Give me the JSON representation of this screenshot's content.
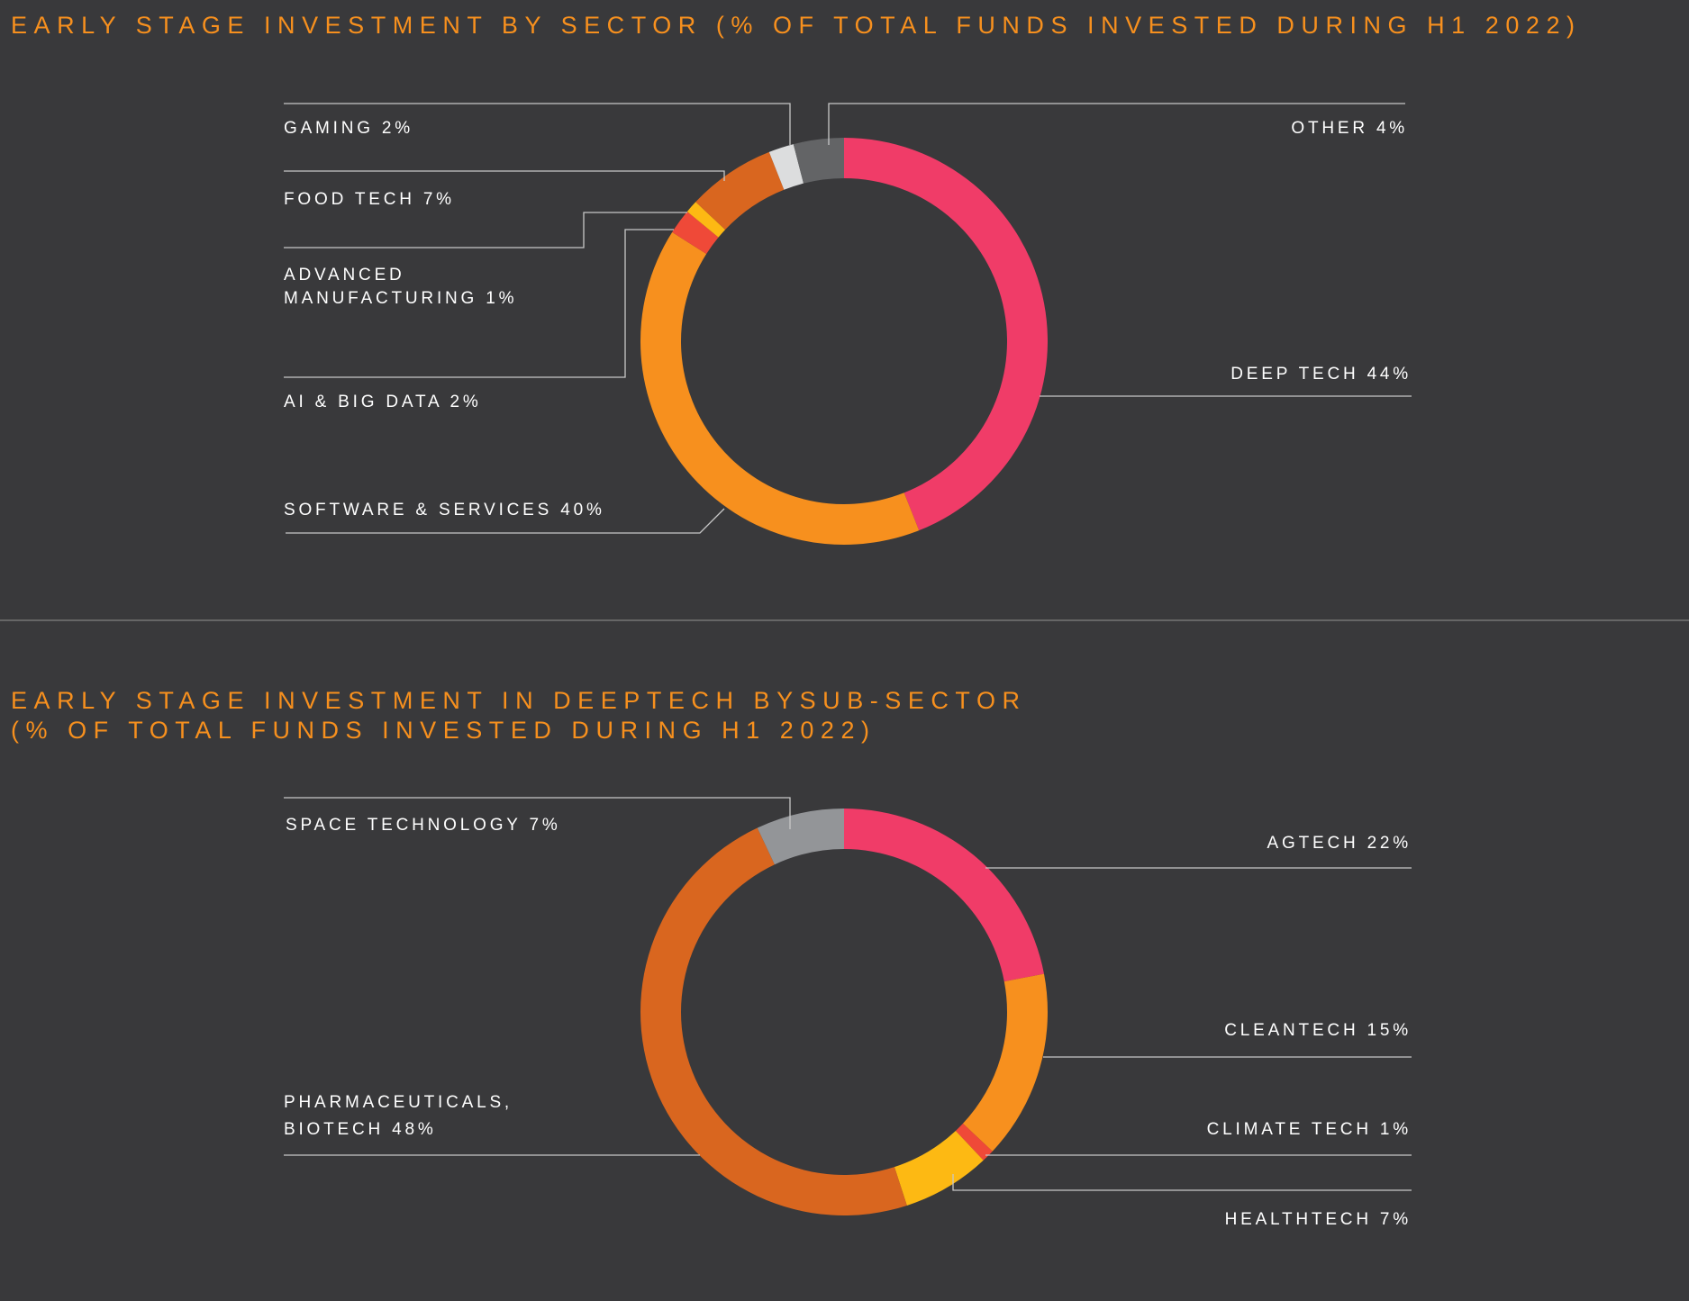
{
  "chart_data": [
    {
      "type": "pie",
      "title": "EARLY STAGE INVESTMENT BY SECTOR (% OF TOTAL FUNDS INVESTED DURING H1 2022)",
      "donut": true,
      "labels": [
        "DEEP TECH 44%",
        "SOFTWARE & SERVICES 40%",
        "AI & BIG DATA 2%",
        "ADVANCED MANUFACTURING 1%",
        "FOOD TECH 7%",
        "GAMING 2%",
        "OTHER 4%"
      ],
      "categories": [
        "Deep Tech",
        "Software & Services",
        "AI & Big Data",
        "Advanced Manufacturing",
        "Food Tech",
        "Gaming",
        "Other"
      ],
      "values": [
        44,
        40,
        2,
        1,
        7,
        2,
        4
      ],
      "colors": [
        "#f03c68",
        "#f7901e",
        "#ef4938",
        "#fdb913",
        "#d9661f",
        "#dcddde",
        "#636466"
      ],
      "adv_lines": [
        "ADVANCED",
        "MANUFACTURING 1%"
      ]
    },
    {
      "type": "pie",
      "title_lines": [
        "EARLY STAGE INVESTMENT IN DEEPTECH BYSUB-SECTOR",
        "(% OF TOTAL FUNDS INVESTED DURING H1 2022)"
      ],
      "donut": true,
      "labels": [
        "AGTECH 22%",
        "CLEANTECH 15%",
        "CLIMATE TECH 1%",
        "HEALTHTECH 7%",
        "PHARMACEUTICALS, BIOTECH 48%",
        "SPACE TECHNOLOGY 7%"
      ],
      "categories": [
        "Agtech",
        "Cleantech",
        "Climate Tech",
        "Healthtech",
        "Pharmaceuticals, Biotech",
        "Space Technology"
      ],
      "values": [
        22,
        15,
        1,
        7,
        48,
        7
      ],
      "colors": [
        "#f03c68",
        "#f7901e",
        "#ef4938",
        "#fdb913",
        "#d9661f",
        "#939598"
      ],
      "pharma_lines": [
        "PHARMACEUTICALS,",
        "BIOTECH 48%"
      ]
    }
  ],
  "colors": {
    "background": "#39393b",
    "title": "#f7901e",
    "label": "#ffffff",
    "divider": "#666666"
  }
}
